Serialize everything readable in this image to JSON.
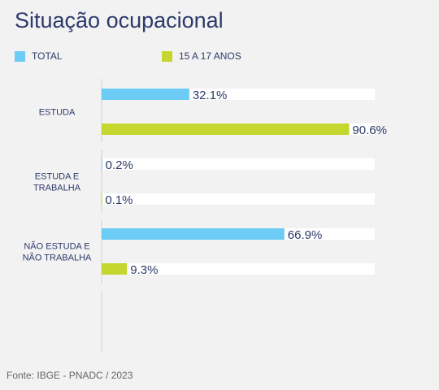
{
  "title": "Situação ocupacional",
  "source": "Fonte: IBGE - PNADC / 2023",
  "colors": {
    "total": "#6cccf5",
    "youth": "#c5d72e",
    "track": "#ffffff",
    "label": "#2d3a6b"
  },
  "chart_data": {
    "type": "bar",
    "orientation": "horizontal",
    "categories": [
      [
        "ESTUDA"
      ],
      [
        "ESTUDA E",
        "TRABALHA"
      ],
      [
        "NÃO ESTUDA E",
        "NÃO TRABALHA"
      ]
    ],
    "series": [
      {
        "name": "TOTAL",
        "values": [
          32.1,
          0.2,
          66.9
        ],
        "labels": [
          "32.1%",
          "0.2%",
          "66.9%"
        ]
      },
      {
        "name": "15 A 17 ANOS",
        "values": [
          90.6,
          0.1,
          9.3
        ],
        "labels": [
          "90.6%",
          "0.1%",
          "9.3%"
        ]
      }
    ],
    "xlim": [
      0,
      100
    ],
    "legend": "top"
  }
}
